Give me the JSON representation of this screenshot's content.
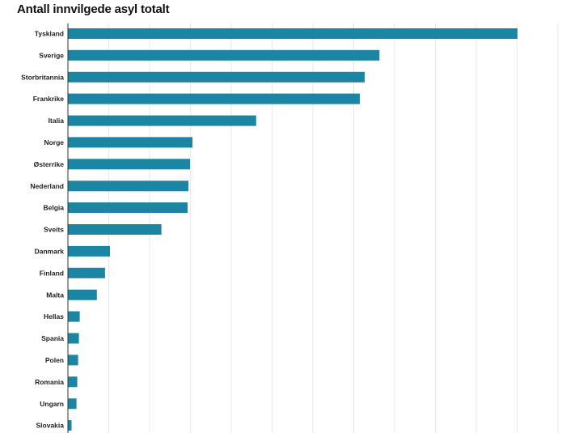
{
  "chart_data": {
    "type": "bar",
    "orientation": "horizontal",
    "title": "Antall innvilgede asyl totalt",
    "xlabel": "",
    "ylabel": "",
    "categories": [
      "Tyskland",
      "Sverige",
      "Storbritannia",
      "Frankrike",
      "Italia",
      "Norge",
      "Østerrike",
      "Nederland",
      "Belgia",
      "Sveits",
      "Danmark",
      "Finland",
      "Malta",
      "Hellas",
      "Spania",
      "Polen",
      "Romania",
      "Ungarn",
      "Slovakia"
    ],
    "values": [
      550,
      381,
      363,
      357,
      230,
      152,
      149,
      147,
      146,
      114,
      51,
      45,
      35,
      14,
      13,
      12,
      11,
      10,
      4
    ],
    "xlim": [
      0,
      600
    ],
    "grid": true,
    "legend": "none",
    "colors": {
      "bar": "#1a86a4",
      "grid": "#e6e8ea",
      "axis": "#333333",
      "text": "#222222"
    }
  }
}
